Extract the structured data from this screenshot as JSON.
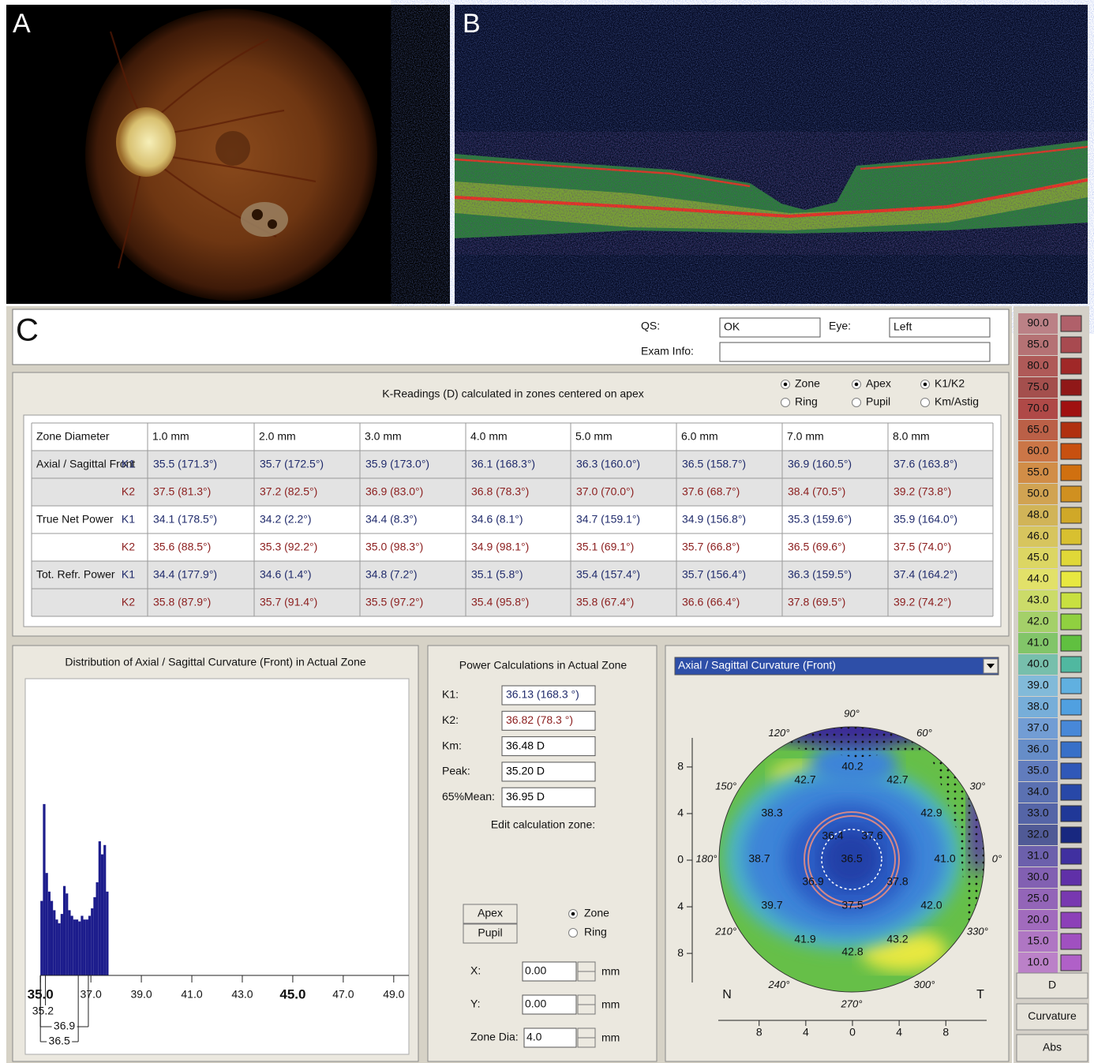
{
  "panels": {
    "a": "A",
    "b": "B",
    "c": "C"
  },
  "header": {
    "qs_label": "QS:",
    "qs": "OK",
    "eye_label": "Eye:",
    "eye": "Left",
    "exam_info_label": "Exam Info:"
  },
  "k_readings": {
    "title": "K-Readings (D) calculated in zones centered on apex",
    "options": [
      {
        "label": "Zone",
        "checked": true
      },
      {
        "label": "Ring",
        "checked": false
      },
      {
        "label": "Apex",
        "checked": true
      },
      {
        "label": "Pupil",
        "checked": false
      },
      {
        "label": "K1/K2",
        "checked": true
      },
      {
        "label": "Km/Astig",
        "checked": false
      }
    ],
    "columns": [
      "Zone Diameter",
      "1.0 mm",
      "2.0 mm",
      "3.0 mm",
      "4.0 mm",
      "5.0 mm",
      "6.0 mm",
      "7.0 mm",
      "8.0 mm"
    ],
    "rows": [
      {
        "group": "Axial / Sagittal Front",
        "k": "K1",
        "color": "#1f2a6b",
        "cells": [
          "35.5  (171.3°)",
          "35.7  (172.5°)",
          "35.9  (173.0°)",
          "36.1  (168.3°)",
          "36.3  (160.0°)",
          "36.5  (158.7°)",
          "36.9  (160.5°)",
          "37.6  (163.8°)"
        ]
      },
      {
        "k": "K2",
        "color": "#8b1d1d",
        "cells": [
          "37.5  (81.3°)",
          "37.2  (82.5°)",
          "36.9  (83.0°)",
          "36.8  (78.3°)",
          "37.0  (70.0°)",
          "37.6  (68.7°)",
          "38.4  (70.5°)",
          "39.2  (73.8°)"
        ]
      },
      {
        "group": "True Net Power",
        "k": "K1",
        "color": "#1f2a6b",
        "cells": [
          "34.1  (178.5°)",
          "34.2  (2.2°)",
          "34.4  (8.3°)",
          "34.6  (8.1°)",
          "34.7  (159.1°)",
          "34.9  (156.8°)",
          "35.3  (159.6°)",
          "35.9  (164.0°)"
        ]
      },
      {
        "k": "K2",
        "color": "#8b1d1d",
        "cells": [
          "35.6  (88.5°)",
          "35.3  (92.2°)",
          "35.0  (98.3°)",
          "34.9  (98.1°)",
          "35.1  (69.1°)",
          "35.7  (66.8°)",
          "36.5  (69.6°)",
          "37.5  (74.0°)"
        ]
      },
      {
        "group": "Tot. Refr. Power",
        "k": "K1",
        "color": "#1f2a6b",
        "cells": [
          "34.4  (177.9°)",
          "34.6  (1.4°)",
          "34.8  (7.2°)",
          "35.1  (5.8°)",
          "35.4  (157.4°)",
          "35.7  (156.4°)",
          "36.3  (159.5°)",
          "37.4  (164.2°)"
        ]
      },
      {
        "k": "K2",
        "color": "#8b1d1d",
        "cells": [
          "35.8  (87.9°)",
          "35.7  (91.4°)",
          "35.5  (97.2°)",
          "35.4  (95.8°)",
          "35.8  (67.4°)",
          "36.6  (66.4°)",
          "37.8  (69.5°)",
          "39.2  (74.2°)"
        ]
      }
    ]
  },
  "histogram": {
    "type": "histogram",
    "title": "Distribution of Axial / Sagittal Curvature (Front) in Actual Zone",
    "color": "#1c1c8c",
    "bins": [
      35.0,
      35.1,
      35.2,
      35.3,
      35.4,
      35.5,
      35.6,
      35.7,
      35.8,
      35.9,
      36.0,
      36.1,
      36.2,
      36.3,
      36.4,
      36.5,
      36.6,
      36.7,
      36.8,
      36.9,
      37.0,
      37.1,
      37.2,
      37.3,
      37.4,
      37.5,
      37.6,
      37.7
    ],
    "counts": [
      40,
      92,
      55,
      45,
      40,
      35,
      30,
      28,
      33,
      48,
      44,
      35,
      32,
      30,
      30,
      29,
      32,
      30,
      30,
      32,
      36,
      42,
      50,
      72,
      65,
      70,
      45
    ],
    "xlim": [
      34.4,
      49.6
    ],
    "ylim": [
      0,
      100
    ],
    "xticks": [
      {
        "value": 35,
        "label": "35.0",
        "bold": true
      },
      {
        "value": 37,
        "label": "37.0"
      },
      {
        "value": 39,
        "label": "39.0"
      },
      {
        "value": 41,
        "label": "41.0"
      },
      {
        "value": 43,
        "label": "43.0"
      },
      {
        "value": 45,
        "label": "45.0",
        "bold": true
      },
      {
        "value": 47,
        "label": "47.0"
      },
      {
        "value": 49,
        "label": "49.0"
      }
    ],
    "markers": [
      {
        "value": 35.2,
        "label": "35.2"
      },
      {
        "value": 36.9,
        "label": "36.9"
      },
      {
        "value": 36.5,
        "label": "36.5"
      }
    ]
  },
  "power": {
    "title": "Power Calculations in Actual Zone",
    "fields": [
      {
        "label": "K1:",
        "value": "36.13  (168.3 °)",
        "color": "#1f2a6b"
      },
      {
        "label": "K2:",
        "value": "36.82  (78.3 °)",
        "color": "#8b1d1d"
      },
      {
        "label": "Km:",
        "value": "36.48 D",
        "color": "#000000"
      },
      {
        "label": "Peak:",
        "value": "35.20 D",
        "color": "#000000"
      },
      {
        "label": "65%Mean:",
        "value": "36.95 D",
        "color": "#000000"
      }
    ],
    "edit_label": "Edit calculation zone:",
    "buttons": [
      "Apex",
      "Pupil"
    ],
    "options": [
      {
        "label": "Zone",
        "checked": true
      },
      {
        "label": "Ring",
        "checked": false
      }
    ],
    "position": [
      {
        "label": "X:",
        "value": "0.00",
        "unit": "mm"
      },
      {
        "label": "Y:",
        "value": "0.00",
        "unit": "mm"
      },
      {
        "label": "Zone Dia:",
        "value": "4.0",
        "unit": "mm"
      }
    ]
  },
  "map": {
    "selector": "Axial / Sagittal Curvature (Front)",
    "angles": [
      "90°",
      "60°",
      "30°",
      "0°",
      "330°",
      "300°",
      "270°",
      "240°",
      "210°",
      "180°",
      "150°",
      "120°"
    ],
    "values": [
      "40.2",
      "42.7",
      "42.7",
      "38.3",
      "42.9",
      "36.4",
      "37.6",
      "38.7",
      "36.5",
      "41.0",
      "36.9",
      "37.8",
      "39.7",
      "37.5",
      "42.0",
      "41.9",
      "42.8",
      "43.2"
    ],
    "xlim": [
      -11.5,
      11.5
    ],
    "ylim": [
      -10.5,
      10.5
    ],
    "xticks": [
      {
        "value": -8,
        "label": "8"
      },
      {
        "value": -4,
        "label": "4"
      },
      0,
      4,
      8
    ],
    "yticks": [
      8,
      4,
      0,
      {
        "value": -4,
        "label": "4"
      },
      {
        "value": -8,
        "label": "8"
      }
    ],
    "nasal": "N",
    "temporal": "T"
  },
  "scale": {
    "steps": [
      {
        "label": "90.0",
        "color": "#b0606a"
      },
      {
        "label": "85.0",
        "color": "#a84a50"
      },
      {
        "label": "80.0",
        "color": "#a02828"
      },
      {
        "label": "75.0",
        "color": "#901818"
      },
      {
        "label": "70.0",
        "color": "#a01010"
      },
      {
        "label": "65.0",
        "color": "#b03010"
      },
      {
        "label": "60.0",
        "color": "#c85010"
      },
      {
        "label": "55.0",
        "color": "#d07010"
      },
      {
        "label": "50.0",
        "color": "#d09020"
      },
      {
        "label": "48.0",
        "color": "#d0a828"
      },
      {
        "label": "46.0",
        "color": "#d8c030"
      },
      {
        "label": "45.0",
        "color": "#e0d838"
      },
      {
        "label": "44.0",
        "color": "#e8e840"
      },
      {
        "label": "43.0",
        "color": "#c8e040"
      },
      {
        "label": "42.0",
        "color": "#90d040"
      },
      {
        "label": "41.0",
        "color": "#60c040"
      },
      {
        "label": "40.0",
        "color": "#50b8a0"
      },
      {
        "label": "39.0",
        "color": "#60b0e0"
      },
      {
        "label": "38.0",
        "color": "#50a0e0"
      },
      {
        "label": "37.0",
        "color": "#4888d8"
      },
      {
        "label": "36.0",
        "color": "#3870c8"
      },
      {
        "label": "35.0",
        "color": "#3058b8"
      },
      {
        "label": "34.0",
        "color": "#2848a8"
      },
      {
        "label": "33.0",
        "color": "#203898"
      },
      {
        "label": "32.0",
        "color": "#182880"
      },
      {
        "label": "31.0",
        "color": "#4030a0"
      },
      {
        "label": "30.0",
        "color": "#6030a8"
      },
      {
        "label": "25.0",
        "color": "#7838b0"
      },
      {
        "label": "20.0",
        "color": "#8c40b8"
      },
      {
        "label": "15.0",
        "color": "#a050c0"
      },
      {
        "label": "10.0",
        "color": "#b060c8"
      }
    ],
    "buttons": [
      "D",
      "Curvature",
      "Abs"
    ]
  }
}
